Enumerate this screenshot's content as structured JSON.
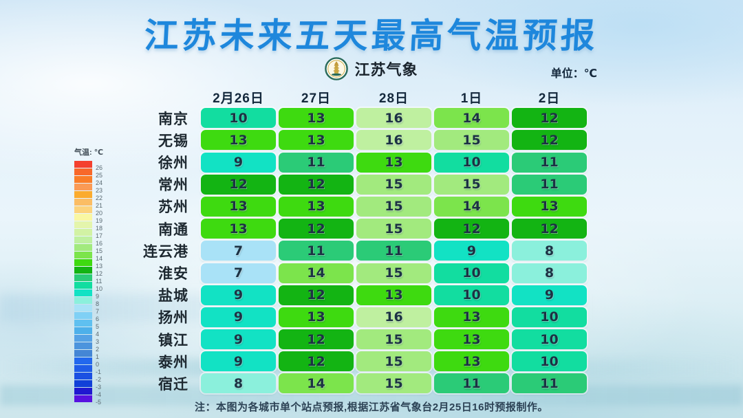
{
  "title": "江苏未来五天最高气温预报",
  "logo_text": "江苏气象",
  "unit_label": "单位：℃",
  "note": "注：本图为各城市单个站点预报,根据江苏省气象台2月25日16时预报制作。",
  "legend": {
    "title": "气温: ℃",
    "entries": [
      {
        "label": "26",
        "color": "#f4402e"
      },
      {
        "label": "25",
        "color": "#f8682a"
      },
      {
        "label": "24",
        "color": "#fa7d28"
      },
      {
        "label": "23",
        "color": "#fa9a55"
      },
      {
        "label": "22",
        "color": "#fbab2d"
      },
      {
        "label": "21",
        "color": "#fbbd64"
      },
      {
        "label": "20",
        "color": "#fcd37c"
      },
      {
        "label": "19",
        "color": "#f9f7a2"
      },
      {
        "label": "18",
        "color": "#e4f5ac"
      },
      {
        "label": "17",
        "color": "#d2f2a4"
      },
      {
        "label": "16",
        "color": "#bff0a0"
      },
      {
        "label": "15",
        "color": "#a2ea7e"
      },
      {
        "label": "14",
        "color": "#7ce44c"
      },
      {
        "label": "13",
        "color": "#3eda10"
      },
      {
        "label": "12",
        "color": "#13b413"
      },
      {
        "label": "11",
        "color": "#2bcb77"
      },
      {
        "label": "10",
        "color": "#12dda0"
      },
      {
        "label": "9",
        "color": "#12e2c4"
      },
      {
        "label": "8",
        "color": "#8bf0dc"
      },
      {
        "label": "7",
        "color": "#a9e2f7"
      },
      {
        "label": "6",
        "color": "#7fd0f5"
      },
      {
        "label": "5",
        "color": "#5fc0f0"
      },
      {
        "label": "4",
        "color": "#4db0ea"
      },
      {
        "label": "3",
        "color": "#55a2e5"
      },
      {
        "label": "2",
        "color": "#4c94dd"
      },
      {
        "label": "1",
        "color": "#4486d5"
      },
      {
        "label": "0",
        "color": "#2268ee"
      },
      {
        "label": "-1",
        "color": "#1f5ce8"
      },
      {
        "label": "-2",
        "color": "#1b50e2"
      },
      {
        "label": "-3",
        "color": "#1140d8"
      },
      {
        "label": "-4",
        "color": "#2018d0"
      },
      {
        "label": "-5",
        "color": "#5812e0"
      }
    ]
  },
  "chart_data": {
    "type": "heatmap",
    "title": "江苏未来五天最高气温预报",
    "unit": "℃",
    "columns": [
      "2月26日",
      "27日",
      "28日",
      "1日",
      "2日"
    ],
    "rows": [
      {
        "city": "南京",
        "values": [
          10,
          13,
          16,
          14,
          12
        ]
      },
      {
        "city": "无锡",
        "values": [
          13,
          13,
          16,
          15,
          12
        ]
      },
      {
        "city": "徐州",
        "values": [
          9,
          11,
          13,
          10,
          11
        ]
      },
      {
        "city": "常州",
        "values": [
          12,
          12,
          15,
          15,
          11
        ]
      },
      {
        "city": "苏州",
        "values": [
          13,
          13,
          15,
          14,
          13
        ]
      },
      {
        "city": "南通",
        "values": [
          13,
          12,
          15,
          12,
          12
        ]
      },
      {
        "city": "连云港",
        "values": [
          7,
          11,
          11,
          9,
          8
        ]
      },
      {
        "city": "淮安",
        "values": [
          7,
          14,
          15,
          10,
          8
        ]
      },
      {
        "city": "盐城",
        "values": [
          9,
          12,
          13,
          10,
          9
        ]
      },
      {
        "city": "扬州",
        "values": [
          9,
          13,
          16,
          13,
          10
        ]
      },
      {
        "city": "镇江",
        "values": [
          9,
          12,
          15,
          13,
          10
        ]
      },
      {
        "city": "泰州",
        "values": [
          9,
          12,
          15,
          13,
          10
        ]
      },
      {
        "city": "宿迁",
        "values": [
          8,
          14,
          15,
          11,
          11
        ]
      }
    ],
    "value_colors": {
      "7": "#a9e2f7",
      "8": "#8bf0dc",
      "9": "#12e2c4",
      "10": "#12dda0",
      "11": "#2bcb77",
      "12": "#13b413",
      "13": "#3eda10",
      "14": "#7ce44c",
      "15": "#a2ea7e",
      "16": "#bff0a0"
    }
  },
  "colors": {
    "title": "#1e87dc",
    "header_text": "#14283c",
    "cell_text": "#1c3244"
  }
}
